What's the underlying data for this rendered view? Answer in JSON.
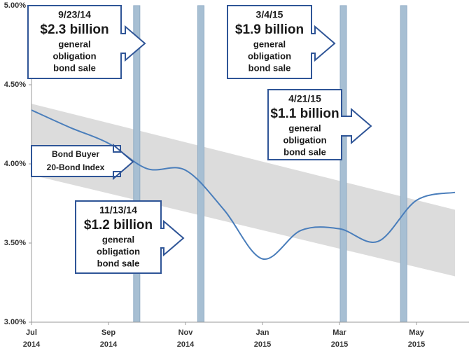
{
  "chart_data": {
    "type": "line",
    "x": [
      "2014-07",
      "2014-08",
      "2014-09",
      "2014-10",
      "2014-11",
      "2014-12",
      "2015-01",
      "2015-02",
      "2015-03",
      "2015-04",
      "2015-05",
      "2015-06"
    ],
    "series": [
      {
        "color": "#4a7ebb",
        "values": [
          4.34,
          4.23,
          4.13,
          3.97,
          3.96,
          3.71,
          3.4,
          3.58,
          3.59,
          3.51,
          3.77,
          3.82
        ]
      }
    ],
    "band": {
      "color": "#dcdcdc",
      "x": [
        "2014-07",
        "2015-06"
      ],
      "upper": [
        4.38,
        3.71
      ],
      "lower": [
        3.93,
        3.29
      ]
    },
    "xlim": [
      "2014-07",
      "2015-06"
    ],
    "xticks": [
      {
        "value": "2014-07",
        "label": [
          "Jul",
          "2014"
        ]
      },
      {
        "value": "2014-09",
        "label": [
          "Sep",
          "2014"
        ]
      },
      {
        "value": "2014-11",
        "label": [
          "Nov",
          "2014"
        ]
      },
      {
        "value": "2015-01",
        "label": [
          "Jan",
          "2015"
        ]
      },
      {
        "value": "2015-03",
        "label": [
          "Mar",
          "2015"
        ]
      },
      {
        "value": "2015-05",
        "label": [
          "May",
          "2015"
        ]
      }
    ],
    "ylim": [
      3.0,
      5.0
    ],
    "yticks": [
      {
        "value": 3.0,
        "label": "3.00%"
      },
      {
        "value": 3.5,
        "label": "3.50%"
      },
      {
        "value": 4.0,
        "label": "4.00%"
      },
      {
        "value": 4.5,
        "label": "4.50%"
      },
      {
        "value": 5.0,
        "label": "5.00%"
      }
    ],
    "grid": false,
    "events": [
      {
        "date": "9/23/14",
        "amount": "$2.3 billion",
        "text": [
          "general",
          "obligation",
          "bond sale"
        ]
      },
      {
        "date": "11/13/14",
        "amount": "$1.2 billion",
        "text": [
          "general",
          "obligation",
          "bond sale"
        ]
      },
      {
        "date": "3/4/15",
        "amount": "$1.9 billion",
        "text": [
          "general",
          "obligation",
          "bond sale"
        ]
      },
      {
        "date": "4/21/15",
        "amount": "$1.1 billion",
        "text": [
          "general",
          "obligation",
          "bond sale"
        ]
      }
    ],
    "event_color": "#a7bfd3",
    "series_label": [
      "Bond Buyer",
      "20-Bond Index"
    ]
  }
}
